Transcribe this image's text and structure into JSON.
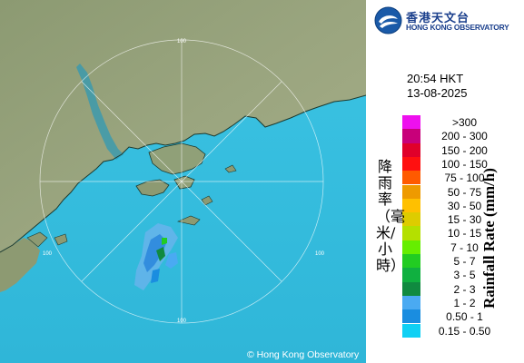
{
  "logo": {
    "name_cn": "香港天文台",
    "name_en": "HONG KONG OBSERVATORY"
  },
  "timestamp": {
    "time": "20:54 HKT",
    "date": "13-08-2025"
  },
  "legend": {
    "title_cn": "降雨率（毫米/小時）",
    "title_en": "Rainfall Rate (mm/h)",
    "items": [
      {
        "label": ">300",
        "color": "#ee10ee"
      },
      {
        "label": "200 - 300",
        "color": "#c8007a"
      },
      {
        "label": "150 - 200",
        "color": "#e0002a"
      },
      {
        "label": "100 - 150",
        "color": "#ff1010"
      },
      {
        "label": "75 - 100",
        "color": "#ff5a00"
      },
      {
        "label": "50 - 75",
        "color": "#ee9a00"
      },
      {
        "label": "30 - 50",
        "color": "#ffc000"
      },
      {
        "label": "15 - 30",
        "color": "#ddcc00"
      },
      {
        "label": "10 - 15",
        "color": "#b4e000"
      },
      {
        "label": "7 - 10",
        "color": "#66ee00"
      },
      {
        "label": "5 - 7",
        "color": "#22cc22"
      },
      {
        "label": "3 - 5",
        "color": "#10b040"
      },
      {
        "label": "2 - 3",
        "color": "#108a40"
      },
      {
        "label": "1 - 2",
        "color": "#4aaaf2"
      },
      {
        "label": "0.50 - 1",
        "color": "#1a8de0"
      },
      {
        "label": "0.15 - 0.50",
        "color": "#10d0f4"
      }
    ]
  },
  "map": {
    "range_ring_labels": [
      "100",
      "100",
      "100",
      "100"
    ],
    "copyright": "© Hong Kong Observatory"
  }
}
